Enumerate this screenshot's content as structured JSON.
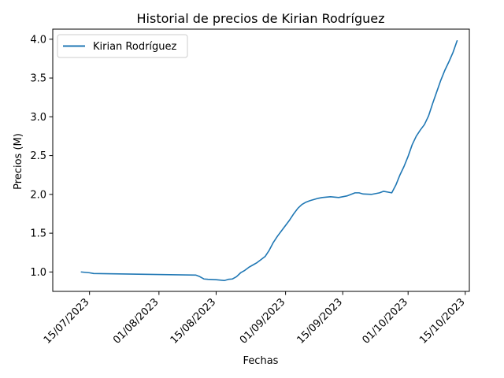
{
  "chart_data": {
    "type": "line",
    "title": "Historial de precios de Kirian Rodríguez",
    "xlabel": "Fechas",
    "ylabel": "Precios (M)",
    "x_range": [
      "2023-07-06",
      "2023-10-16"
    ],
    "ylim": [
      0.75,
      4.13
    ],
    "y_ticks": [
      "1.0",
      "1.5",
      "2.0",
      "2.5",
      "3.0",
      "3.5",
      "4.0"
    ],
    "x_ticks": [
      {
        "date": "2023-07-15",
        "label": "15/07/2023"
      },
      {
        "date": "2023-08-01",
        "label": "01/08/2023"
      },
      {
        "date": "2023-08-15",
        "label": "15/08/2023"
      },
      {
        "date": "2023-09-01",
        "label": "01/09/2023"
      },
      {
        "date": "2023-09-15",
        "label": "15/09/2023"
      },
      {
        "date": "2023-10-01",
        "label": "01/10/2023"
      },
      {
        "date": "2023-10-15",
        "label": "15/10/2023"
      }
    ],
    "grid": false,
    "legend_position": "top-left",
    "series": [
      {
        "name": "Kirian Rodríguez",
        "color": "#1f77b4",
        "points": [
          [
            "2023-07-13",
            1.0
          ],
          [
            "2023-07-15",
            0.99
          ],
          [
            "2023-07-16",
            0.98
          ],
          [
            "2023-08-10",
            0.96
          ],
          [
            "2023-08-11",
            0.94
          ],
          [
            "2023-08-12",
            0.91
          ],
          [
            "2023-08-13",
            0.905
          ],
          [
            "2023-08-15",
            0.9
          ],
          [
            "2023-08-17",
            0.89
          ],
          [
            "2023-08-18",
            0.905
          ],
          [
            "2023-08-19",
            0.91
          ],
          [
            "2023-08-20",
            0.94
          ],
          [
            "2023-08-21",
            0.99
          ],
          [
            "2023-08-22",
            1.02
          ],
          [
            "2023-08-23",
            1.06
          ],
          [
            "2023-08-24",
            1.09
          ],
          [
            "2023-08-25",
            1.12
          ],
          [
            "2023-08-26",
            1.16
          ],
          [
            "2023-08-27",
            1.2
          ],
          [
            "2023-08-28",
            1.28
          ],
          [
            "2023-08-29",
            1.38
          ],
          [
            "2023-08-30",
            1.46
          ],
          [
            "2023-08-31",
            1.53
          ],
          [
            "2023-09-01",
            1.6
          ],
          [
            "2023-09-02",
            1.67
          ],
          [
            "2023-09-03",
            1.75
          ],
          [
            "2023-09-04",
            1.82
          ],
          [
            "2023-09-05",
            1.87
          ],
          [
            "2023-09-06",
            1.9
          ],
          [
            "2023-09-07",
            1.92
          ],
          [
            "2023-09-08",
            1.935
          ],
          [
            "2023-09-09",
            1.95
          ],
          [
            "2023-09-10",
            1.96
          ],
          [
            "2023-09-12",
            1.97
          ],
          [
            "2023-09-13",
            1.965
          ],
          [
            "2023-09-14",
            1.96
          ],
          [
            "2023-09-15",
            1.97
          ],
          [
            "2023-09-16",
            1.98
          ],
          [
            "2023-09-17",
            2.0
          ],
          [
            "2023-09-18",
            2.02
          ],
          [
            "2023-09-19",
            2.02
          ],
          [
            "2023-09-20",
            2.005
          ],
          [
            "2023-09-22",
            2.0
          ],
          [
            "2023-09-23",
            2.01
          ],
          [
            "2023-09-24",
            2.02
          ],
          [
            "2023-09-25",
            2.04
          ],
          [
            "2023-09-26",
            2.03
          ],
          [
            "2023-09-27",
            2.02
          ],
          [
            "2023-09-28",
            2.12
          ],
          [
            "2023-09-29",
            2.25
          ],
          [
            "2023-09-30",
            2.36
          ],
          [
            "2023-10-01",
            2.49
          ],
          [
            "2023-10-02",
            2.64
          ],
          [
            "2023-10-03",
            2.75
          ],
          [
            "2023-10-04",
            2.83
          ],
          [
            "2023-10-05",
            2.9
          ],
          [
            "2023-10-06",
            3.01
          ],
          [
            "2023-10-07",
            3.17
          ],
          [
            "2023-10-08",
            3.32
          ],
          [
            "2023-10-09",
            3.47
          ],
          [
            "2023-10-10",
            3.6
          ],
          [
            "2023-10-11",
            3.71
          ],
          [
            "2023-10-12",
            3.83
          ],
          [
            "2023-10-13",
            3.98
          ]
        ]
      }
    ]
  }
}
